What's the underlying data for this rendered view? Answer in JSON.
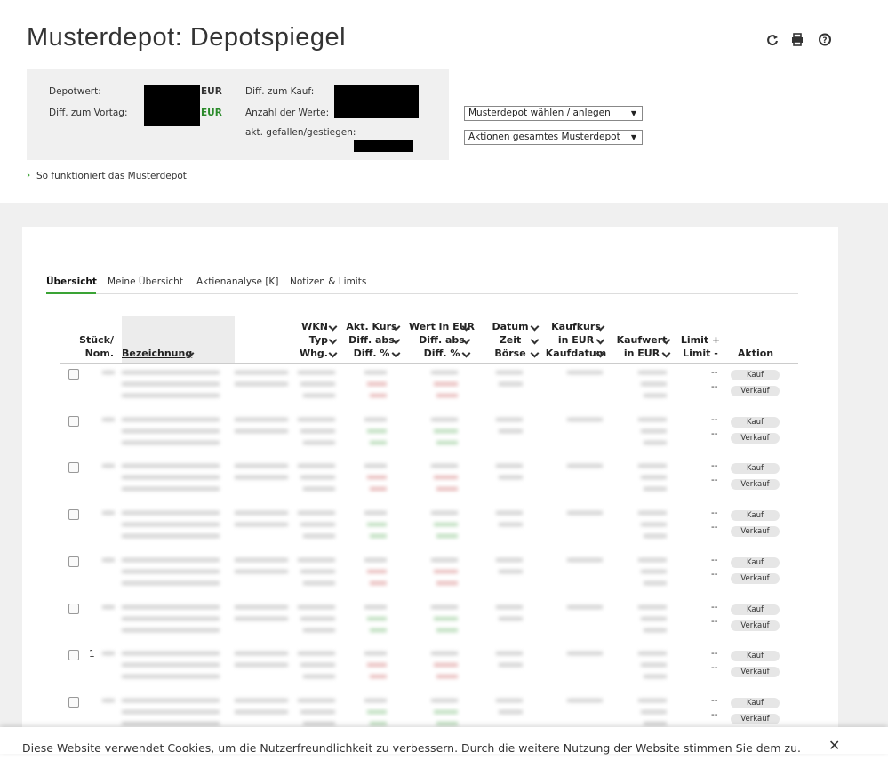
{
  "header": {
    "title": "Musterdepot: Depotspiegel"
  },
  "summary": {
    "depotwert": "Depotwert:",
    "diff_vortag": "Diff. zum Vortag:",
    "currency_1": "EUR",
    "currency_2": "EUR",
    "diff_kauf": "Diff. zum Kauf:",
    "anzahl": "Anzahl der Werte:",
    "gefallen": "akt. gefallen/gestiegen:"
  },
  "selects": [
    "Musterdepot wählen / anlegen",
    "Aktionen gesamtes Musterdepot"
  ],
  "help_link": "So funktioniert das Musterdepot",
  "tabs": [
    "Übersicht",
    "Meine Übersicht",
    "Aktienanalyse [K]",
    "Notizen & Limits"
  ],
  "table": {
    "columns": [
      {
        "lines": [
          "Stück/",
          "Nom."
        ]
      },
      {
        "lines": [
          "Bezeichnung"
        ]
      },
      {
        "lines": [
          "WKN",
          "Typ",
          "Whg."
        ]
      },
      {
        "lines": [
          "Akt. Kurs",
          "Diff. abs",
          "Diff. %"
        ]
      },
      {
        "lines": [
          "Wert in EUR",
          "Diff. abs",
          "Diff. %"
        ]
      },
      {
        "lines": [
          "Datum",
          "Zeit",
          "Börse"
        ]
      },
      {
        "lines": [
          "Kaufkurs",
          "in EUR",
          "Kaufdatum"
        ]
      },
      {
        "lines": [
          "Kaufwert",
          "in EUR"
        ]
      },
      {
        "lines": [
          "Limit +",
          "Limit -"
        ]
      },
      {
        "lines": [
          "Aktion"
        ]
      }
    ],
    "rows": [
      {
        "limit_plus": "--",
        "limit_minus": "--",
        "buy": "Kauf",
        "sell": "Verkauf"
      },
      {
        "limit_plus": "--",
        "limit_minus": "--",
        "buy": "Kauf",
        "sell": "Verkauf"
      },
      {
        "limit_plus": "--",
        "limit_minus": "--",
        "buy": "Kauf",
        "sell": "Verkauf"
      },
      {
        "limit_plus": "--",
        "limit_minus": "--",
        "buy": "Kauf",
        "sell": "Verkauf"
      },
      {
        "limit_plus": "--",
        "limit_minus": "--",
        "buy": "Kauf",
        "sell": "Verkauf"
      },
      {
        "limit_plus": "--",
        "limit_minus": "--",
        "buy": "Kauf",
        "sell": "Verkauf"
      },
      {
        "quantity": "1",
        "limit_plus": "--",
        "limit_minus": "--",
        "buy": "Kauf",
        "sell": "Verkauf"
      },
      {
        "limit_plus": "--",
        "limit_minus": "--",
        "buy": "Kauf",
        "sell": "Verkauf"
      }
    ]
  },
  "cookie": {
    "text": "Diese Website verwendet Cookies, um die Nutzerfreundlichkeit zu verbessern. Durch die weitere Nutzung der Website stimmen Sie dem zu.",
    "close": "✕"
  }
}
